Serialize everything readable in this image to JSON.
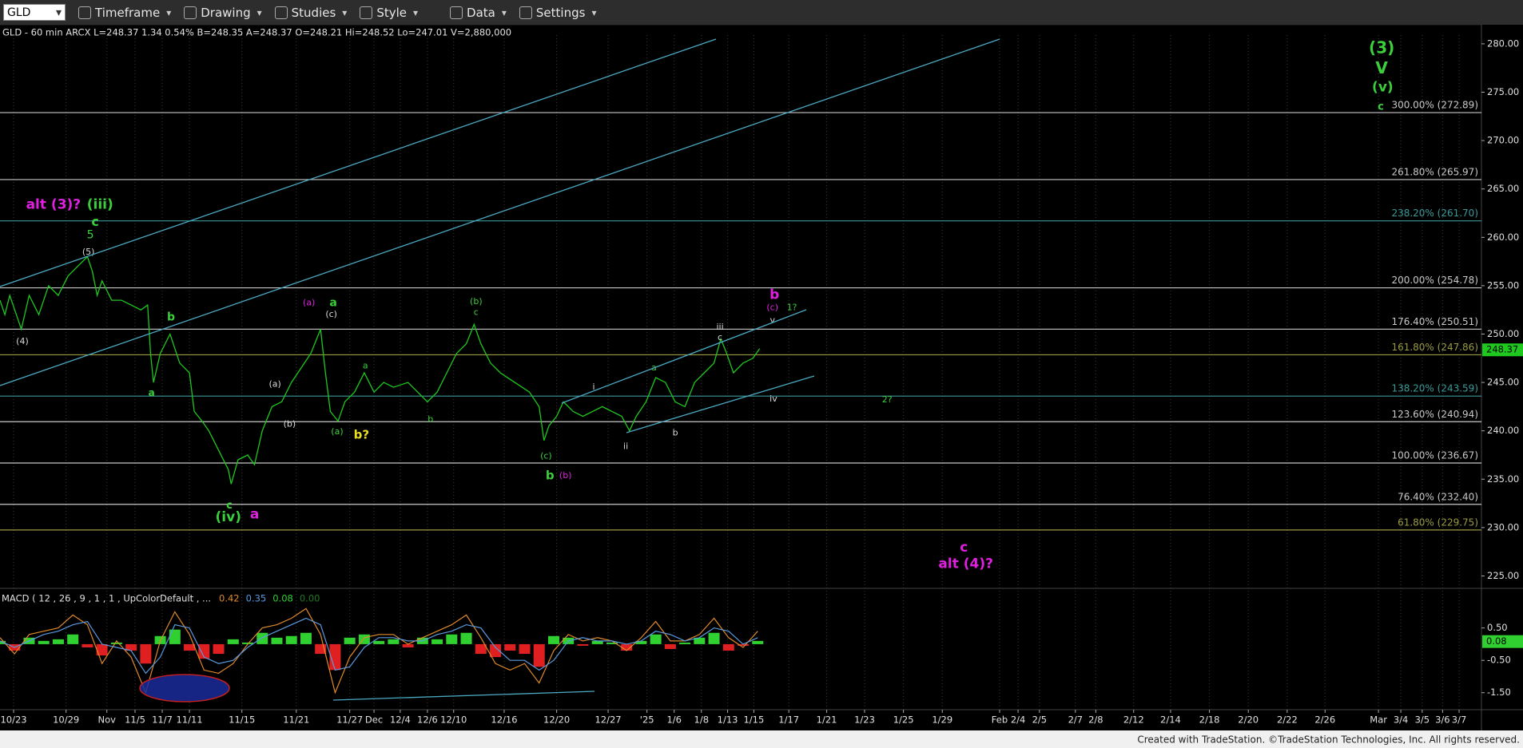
{
  "toolbar": {
    "symbol": "GLD",
    "items": [
      "Timeframe",
      "Drawing",
      "Studies",
      "Style",
      "Data",
      "Settings"
    ]
  },
  "chart_data": [
    {
      "type": "line",
      "header": "GLD - 60 min  ARCX  L=248.37  1.34  0.54%  B=248.35  A=248.37  O=248.21  Hi=248.52  Lo=247.01  V=2,880,000",
      "xlim": [
        0,
        305
      ],
      "xticks": [
        {
          "value": 2.8,
          "label": "10/23"
        },
        {
          "value": 13.6,
          "label": "10/29"
        },
        {
          "value": 22,
          "label": "Nov"
        },
        {
          "value": 27.8,
          "label": "11/5"
        },
        {
          "value": 33.4,
          "label": "11/7"
        },
        {
          "value": 39,
          "label": "11/11"
        },
        {
          "value": 49.8,
          "label": "11/15"
        },
        {
          "value": 61,
          "label": "11/21"
        },
        {
          "value": 72,
          "label": "11/27"
        },
        {
          "value": 77,
          "label": "Dec"
        },
        {
          "value": 82.4,
          "label": "12/4"
        },
        {
          "value": 88,
          "label": "12/6"
        },
        {
          "value": 93.4,
          "label": "12/10"
        },
        {
          "value": 103.8,
          "label": "12/16"
        },
        {
          "value": 114.6,
          "label": "12/20"
        },
        {
          "value": 125.2,
          "label": "12/27"
        },
        {
          "value": 133.2,
          "label": "'25"
        },
        {
          "value": 138.8,
          "label": "1/6"
        },
        {
          "value": 144.4,
          "label": "1/8"
        },
        {
          "value": 149.8,
          "label": "1/13"
        },
        {
          "value": 155.2,
          "label": "1/15"
        },
        {
          "value": 162.4,
          "label": "1/17"
        },
        {
          "value": 170.2,
          "label": "1/21"
        },
        {
          "value": 178,
          "label": "1/23"
        },
        {
          "value": 186,
          "label": "1/25"
        },
        {
          "value": 194,
          "label": "1/29"
        },
        {
          "value": 205.8,
          "label": "Feb"
        },
        {
          "value": 209.6,
          "label": "2/4"
        },
        {
          "value": 214,
          "label": "2/5"
        },
        {
          "value": 221.4,
          "label": "2/7"
        },
        {
          "value": 225.6,
          "label": "2/8"
        },
        {
          "value": 233.4,
          "label": "2/12"
        },
        {
          "value": 241,
          "label": "2/14"
        },
        {
          "value": 249,
          "label": "2/18"
        },
        {
          "value": 257,
          "label": "2/20"
        },
        {
          "value": 265,
          "label": "2/22"
        },
        {
          "value": 272.8,
          "label": "2/26"
        },
        {
          "value": 283.8,
          "label": "Mar"
        },
        {
          "value": 288.4,
          "label": "3/4"
        },
        {
          "value": 292.8,
          "label": "3/5"
        },
        {
          "value": 297,
          "label": "3/6"
        },
        {
          "value": 300.4,
          "label": "3/7"
        }
      ],
      "ylim": [
        223.8,
        280.9
      ],
      "yticks": [
        {
          "value": 225,
          "label": "225.00"
        },
        {
          "value": 230,
          "label": "230.00"
        },
        {
          "value": 235,
          "label": "235.00"
        },
        {
          "value": 240,
          "label": "240.00"
        },
        {
          "value": 245,
          "label": "245.00"
        },
        {
          "value": 250,
          "label": "250.00"
        },
        {
          "value": 255,
          "label": "255.00"
        },
        {
          "value": 260,
          "label": "260.00"
        },
        {
          "value": 265,
          "label": "265.00"
        },
        {
          "value": 270,
          "label": "270.00"
        },
        {
          "value": 275,
          "label": "275.00"
        },
        {
          "value": 280,
          "label": "280.00"
        }
      ],
      "grid": true,
      "series": [
        {
          "color": "#1ec81e",
          "x": [
            0,
            1,
            2,
            4.4,
            6,
            8,
            10,
            12,
            14,
            16,
            18,
            19,
            20,
            21,
            23,
            25,
            27,
            29,
            30.4,
            31,
            31.6,
            33,
            35,
            37,
            39,
            40,
            41.6,
            43,
            45,
            47,
            47.6,
            49,
            51,
            52.4,
            54,
            56,
            58,
            60,
            62,
            64,
            66,
            67,
            68,
            69.6,
            71,
            73,
            75,
            77,
            79,
            81,
            84,
            86,
            88,
            90,
            92,
            94,
            96,
            97.6,
            99,
            101,
            103,
            106,
            109,
            111,
            112,
            113,
            114.6,
            116,
            118,
            120,
            122,
            124,
            126,
            128,
            129.6,
            131,
            133,
            135,
            137,
            139,
            141,
            143,
            145,
            147,
            148.4,
            149.6,
            151,
            153,
            155,
            156.4
          ],
          "values": [
            253.5,
            252,
            254,
            250.5,
            254,
            252,
            255,
            254,
            256,
            257,
            258,
            256.5,
            254,
            255.5,
            253.5,
            253.5,
            253,
            252.5,
            253,
            248,
            245,
            248,
            250,
            247,
            246,
            242,
            241,
            240,
            238,
            236,
            234.5,
            237,
            237.5,
            236.5,
            240,
            242.5,
            243,
            245,
            246.5,
            248,
            250.5,
            246,
            242,
            241,
            243,
            244,
            246,
            244,
            245,
            244.5,
            245,
            244,
            243,
            244,
            246,
            248,
            249,
            251,
            249,
            247,
            246,
            245,
            244,
            242.5,
            239,
            240.5,
            241.5,
            243,
            242,
            241.5,
            242,
            242.5,
            242,
            241.5,
            240,
            241.5,
            243,
            245.5,
            245,
            243,
            242.5,
            245,
            246,
            247,
            249.5,
            248,
            246,
            247,
            247.5,
            248.5
          ]
        }
      ],
      "last_price": 248.37,
      "last_price_color": "#1ec81e",
      "levels": [
        {
          "value": 272.89,
          "label": "300.00% (272.89)",
          "color": "#c8c8c8"
        },
        {
          "value": 265.97,
          "label": "261.80% (265.97)",
          "color": "#c8c8c8"
        },
        {
          "value": 261.7,
          "label": "238.20% (261.70)",
          "color": "#3a9a9a"
        },
        {
          "value": 254.78,
          "label": "200.00% (254.78)",
          "color": "#c8c8c8"
        },
        {
          "value": 250.51,
          "label": "176.40% (250.51)",
          "color": "#c8c8c8"
        },
        {
          "value": 247.86,
          "label": "161.80% (247.86)",
          "color": "#9a9a40"
        },
        {
          "value": 243.59,
          "label": "138.20% (243.59)",
          "color": "#3a9a9a"
        },
        {
          "value": 240.94,
          "label": "123.60% (240.94)",
          "color": "#c8c8c8"
        },
        {
          "value": 236.67,
          "label": "100.00% (236.67)",
          "color": "#c8c8c8"
        },
        {
          "value": 232.4,
          "label": "76.40% (232.40)",
          "color": "#c8c8c8"
        },
        {
          "value": 229.75,
          "label": "61.80% (229.75)",
          "color": "#9a9a40"
        }
      ],
      "annotations": [
        "alt (3)?",
        "(iii)",
        "c",
        "5",
        "(5)",
        "(4)",
        "b",
        "a",
        "c",
        "(iv)",
        "a",
        "(a)",
        "(b)",
        "(a)",
        "a",
        "(c)",
        "(a)",
        "b?",
        "a",
        "b",
        "(b)",
        "c",
        "(c)",
        "b",
        "(b)",
        "i",
        "ii",
        "a",
        "b",
        "iii",
        "c",
        "b",
        "(c)",
        "1?",
        "v",
        "iv",
        "2?",
        "(3)",
        "V",
        "(v)",
        "c",
        "c",
        "alt (4)?"
      ]
    },
    {
      "type": "macd",
      "title": "MACD ( 12 , 26 , 9 , 1 , 1 , UpColorDefault , ...",
      "legend": [
        {
          "value": 0.42,
          "color": "#e08a2a"
        },
        {
          "value": 0.35,
          "color": "#5a9ae0"
        },
        {
          "value": 0.08,
          "color": "#30d030"
        },
        {
          "value": 0,
          "label": "0.00",
          "color": "#1f7a1f"
        }
      ],
      "ylim": [
        -2,
        1.7
      ],
      "yticks": [
        {
          "value": 0.5,
          "label": "0.50"
        },
        {
          "value": -0.5,
          "label": "-0.50"
        },
        {
          "value": -1.5,
          "label": "-1.50"
        }
      ],
      "x": [
        0,
        3,
        6,
        9,
        12,
        15,
        18,
        21,
        24,
        27,
        30,
        33,
        36,
        39,
        42,
        45,
        48,
        51,
        54,
        57,
        60,
        63,
        66,
        69,
        72,
        75,
        78,
        81,
        84,
        87,
        90,
        93,
        96,
        99,
        102,
        105,
        108,
        111,
        114,
        117,
        120,
        123,
        126,
        129,
        132,
        135,
        138,
        141,
        144,
        147,
        150,
        153,
        156
      ],
      "series": [
        {
          "color": "#e08a2a",
          "values": [
            0.2,
            -0.3,
            0.3,
            0.4,
            0.5,
            0.9,
            0.6,
            -0.6,
            0.1,
            -0.4,
            -1.5,
            0.1,
            1.0,
            0.3,
            -0.8,
            -0.9,
            -0.6,
            0.0,
            0.5,
            0.6,
            0.8,
            1.1,
            0.3,
            -1.5,
            -0.4,
            0.2,
            0.3,
            0.3,
            0.0,
            0.2,
            0.4,
            0.6,
            0.9,
            0.2,
            -0.6,
            -0.8,
            -0.6,
            -1.2,
            -0.2,
            0.3,
            0.1,
            0.2,
            0.1,
            -0.2,
            0.2,
            0.7,
            0.1,
            0.1,
            0.3,
            0.8,
            0.2,
            -0.1,
            0.4
          ]
        },
        {
          "color": "#5a9ae0",
          "values": [
            0.1,
            -0.1,
            0.1,
            0.3,
            0.4,
            0.6,
            0.7,
            0.0,
            -0.1,
            -0.2,
            -0.9,
            -0.4,
            0.6,
            0.5,
            -0.4,
            -0.6,
            -0.5,
            -0.1,
            0.2,
            0.4,
            0.6,
            0.8,
            0.6,
            -0.8,
            -0.7,
            -0.1,
            0.2,
            0.2,
            0.1,
            0.1,
            0.3,
            0.4,
            0.6,
            0.5,
            -0.1,
            -0.5,
            -0.5,
            -0.8,
            -0.5,
            0.1,
            0.2,
            0.1,
            0.1,
            0.0,
            0.1,
            0.4,
            0.3,
            0.1,
            0.2,
            0.5,
            0.4,
            0.0,
            0.2
          ]
        }
      ],
      "histogram": {
        "values": [
          0.1,
          -0.2,
          0.2,
          0.1,
          0.15,
          0.3,
          -0.1,
          -0.35,
          0.05,
          -0.2,
          -0.6,
          0.25,
          0.45,
          -0.2,
          -0.45,
          -0.3,
          0.15,
          0.05,
          0.35,
          0.2,
          0.25,
          0.35,
          -0.3,
          -0.8,
          0.2,
          0.3,
          0.1,
          0.15,
          -0.1,
          0.2,
          0.15,
          0.3,
          0.35,
          -0.3,
          -0.4,
          -0.2,
          -0.3,
          -0.7,
          0.25,
          0.2,
          -0.05,
          0.1,
          0.05,
          -0.2,
          0.1,
          0.3,
          -0.15,
          0.05,
          0.2,
          0.35,
          -0.2,
          -0.05,
          0.1
        ],
        "up_color": "#30d030",
        "down_color": "#e02020"
      },
      "last_value": 0.08
    }
  ],
  "footer": "Created with TradeStation. ©TradeStation Technologies, Inc. All rights reserved."
}
